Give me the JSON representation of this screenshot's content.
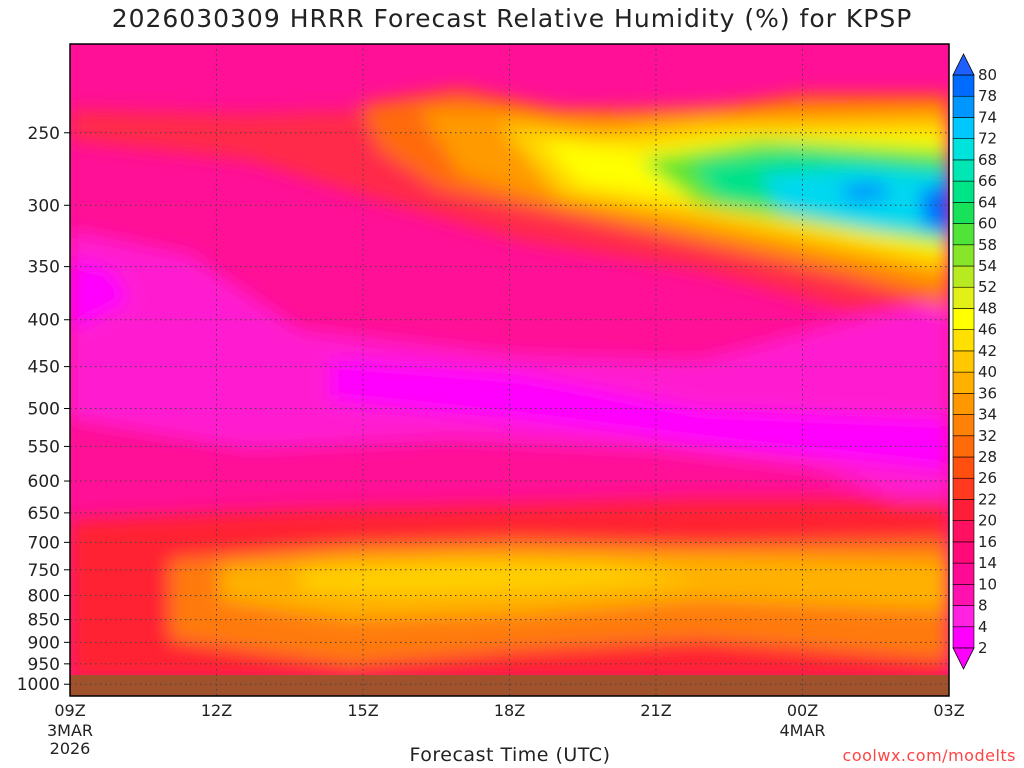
{
  "title": "2026030309 HRRR Forecast Relative Humidity (%) for KPSP",
  "xlabel": "Forecast Time (UTC)",
  "credit": "coolwx.com/modelts",
  "colors": {
    "ground": "#a0522d",
    "frame": "#000000",
    "grid": "#444444"
  },
  "chart_data": {
    "type": "heatmap",
    "title": "2026030309 HRRR Forecast Relative Humidity (%) for KPSP",
    "xlabel": "Forecast Time (UTC)",
    "ylabel": "",
    "x_ticks": [
      {
        "hour": 0,
        "label": "09Z",
        "sub1": "3MAR",
        "sub2": "2026"
      },
      {
        "hour": 3,
        "label": "12Z",
        "sub1": "",
        "sub2": ""
      },
      {
        "hour": 6,
        "label": "15Z",
        "sub1": "",
        "sub2": ""
      },
      {
        "hour": 9,
        "label": "18Z",
        "sub1": "",
        "sub2": ""
      },
      {
        "hour": 12,
        "label": "21Z",
        "sub1": "",
        "sub2": ""
      },
      {
        "hour": 15,
        "label": "00Z",
        "sub1": "4MAR",
        "sub2": ""
      },
      {
        "hour": 18,
        "label": "03Z",
        "sub1": "",
        "sub2": ""
      }
    ],
    "y_ticks": [
      250,
      300,
      350,
      400,
      450,
      500,
      550,
      600,
      650,
      700,
      750,
      800,
      850,
      900,
      950,
      1000
    ],
    "y_scale": "log",
    "y_reversed": true,
    "ylim": [
      200,
      1030
    ],
    "colorbar": {
      "levels": [
        2,
        4,
        8,
        10,
        14,
        16,
        20,
        22,
        26,
        28,
        32,
        34,
        36,
        40,
        42,
        46,
        48,
        52,
        54,
        58,
        60,
        64,
        66,
        68,
        72,
        74,
        78,
        80
      ],
      "colors": [
        "#ff00ff",
        "#ff22e0",
        "#ff11b0",
        "#ff0a94",
        "#ff0a78",
        "#ff1060",
        "#ff1e38",
        "#ff3a1e",
        "#ff5010",
        "#ff6a0a",
        "#ff8208",
        "#ff9800",
        "#ffb000",
        "#ffc800",
        "#ffe000",
        "#ffff00",
        "#e2f018",
        "#b8ea22",
        "#88e62a",
        "#50e438",
        "#18e25a",
        "#00e488",
        "#00e6b4",
        "#00e2dc",
        "#00c8ff",
        "#0096ff",
        "#006cff"
      ]
    },
    "series": []
  }
}
